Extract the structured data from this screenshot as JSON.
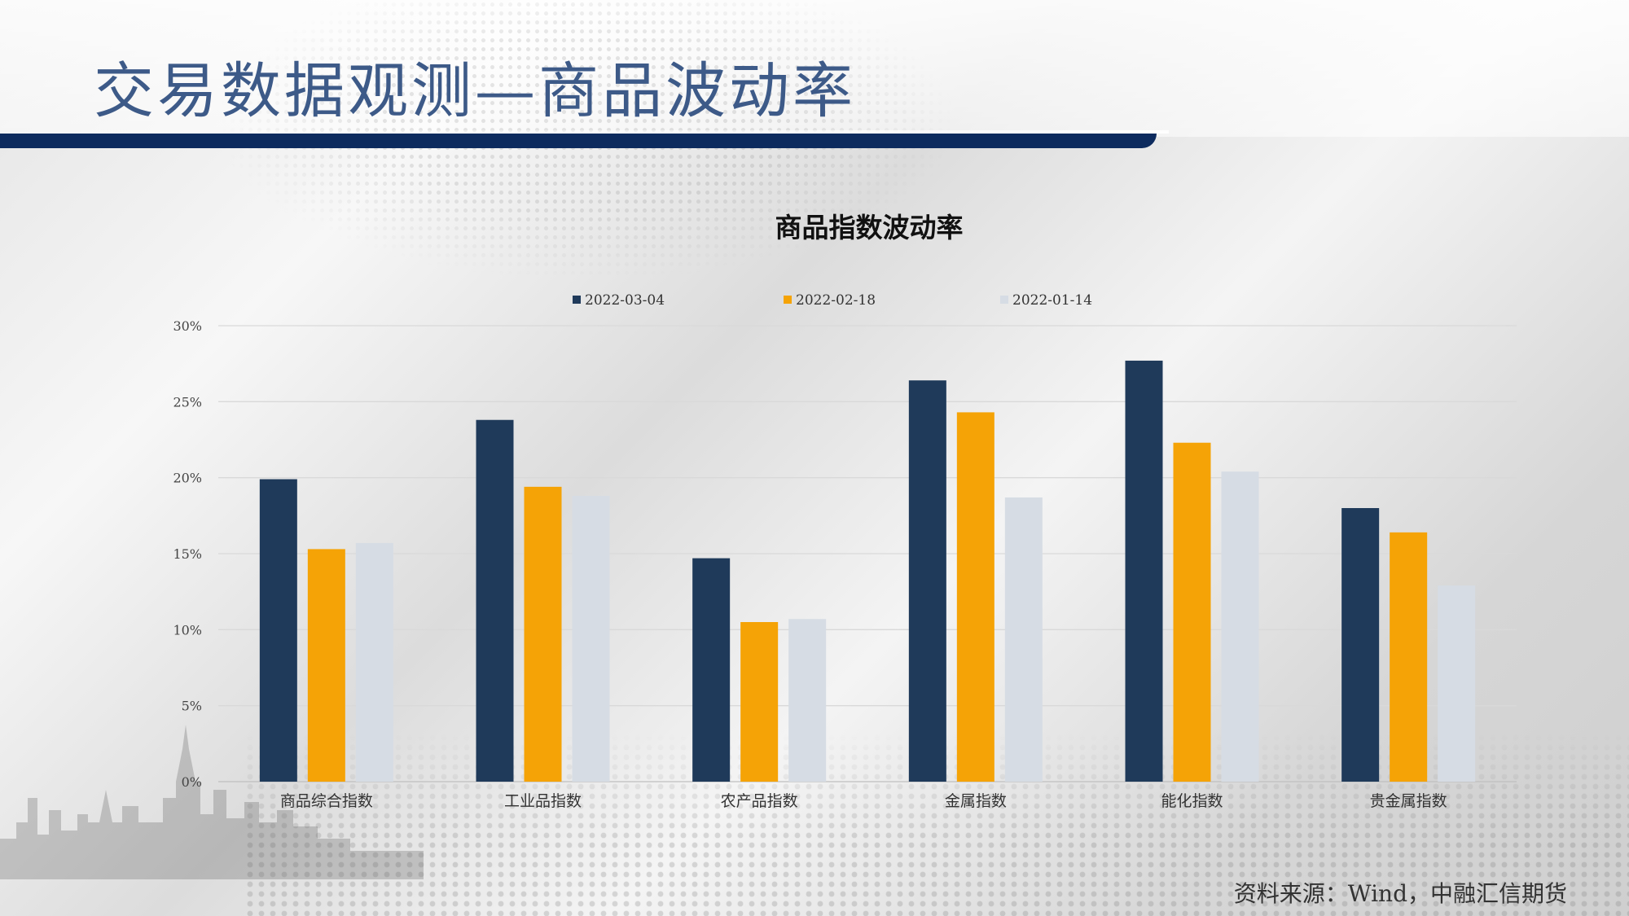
{
  "slide": {
    "title": "交易数据观测—商品波动率",
    "source": "资料来源：Wind，中融汇信期货"
  },
  "chart_data": {
    "type": "bar",
    "title": "商品指数波动率",
    "categories": [
      "商品综合指数",
      "工业品指数",
      "农产品指数",
      "金属指数",
      "能化指数",
      "贵金属指数"
    ],
    "series": [
      {
        "name": "2022-03-04",
        "color": "#1f3a5a",
        "values": [
          19.9,
          23.8,
          14.7,
          26.4,
          27.7,
          18.0
        ]
      },
      {
        "name": "2022-02-18",
        "color": "#f5a306",
        "values": [
          15.3,
          19.4,
          10.5,
          24.3,
          22.3,
          16.4
        ]
      },
      {
        "name": "2022-01-14",
        "color": "#d6dce4",
        "values": [
          15.7,
          18.8,
          10.7,
          18.7,
          20.4,
          12.9
        ]
      }
    ],
    "ylim": [
      0,
      30
    ],
    "yticks": [
      0,
      5,
      10,
      15,
      20,
      25,
      30
    ],
    "ytick_labels": [
      "0%",
      "5%",
      "10%",
      "15%",
      "20%",
      "25%",
      "30%"
    ],
    "grid": true,
    "legend": "top-center",
    "xlabel": "",
    "ylabel": ""
  }
}
